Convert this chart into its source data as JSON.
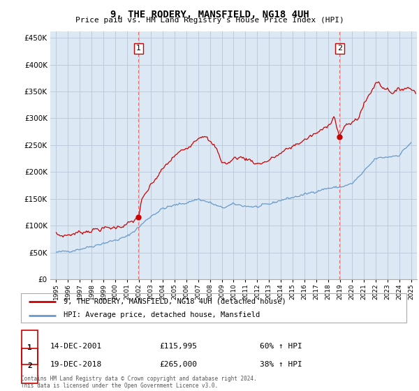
{
  "title": "9, THE RODERY, MANSFIELD, NG18 4UH",
  "subtitle": "Price paid vs. HM Land Registry's House Price Index (HPI)",
  "ytick_values": [
    0,
    50000,
    100000,
    150000,
    200000,
    250000,
    300000,
    350000,
    400000,
    450000
  ],
  "ylim": [
    0,
    462000
  ],
  "xlim_start": 1994.5,
  "xlim_end": 2025.5,
  "hpi_color": "#6699cc",
  "price_color": "#cc0000",
  "plot_bg_color": "#dce9f5",
  "marker1_year": 2001.96,
  "marker1_price": 115995,
  "marker2_year": 2018.96,
  "marker2_price": 265000,
  "marker1_label": "1",
  "marker2_label": "2",
  "legend_line1": "9, THE RODERY, MANSFIELD, NG18 4UH (detached house)",
  "legend_line2": "HPI: Average price, detached house, Mansfield",
  "table_row1_num": "1",
  "table_row1_date": "14-DEC-2001",
  "table_row1_price": "£115,995",
  "table_row1_hpi": "60% ↑ HPI",
  "table_row2_num": "2",
  "table_row2_date": "19-DEC-2018",
  "table_row2_price": "£265,000",
  "table_row2_hpi": "38% ↑ HPI",
  "footnote": "Contains HM Land Registry data © Crown copyright and database right 2024.\nThis data is licensed under the Open Government Licence v3.0.",
  "vline_color": "#ee5555",
  "background_color": "#ffffff",
  "grid_color": "#bbccdd"
}
